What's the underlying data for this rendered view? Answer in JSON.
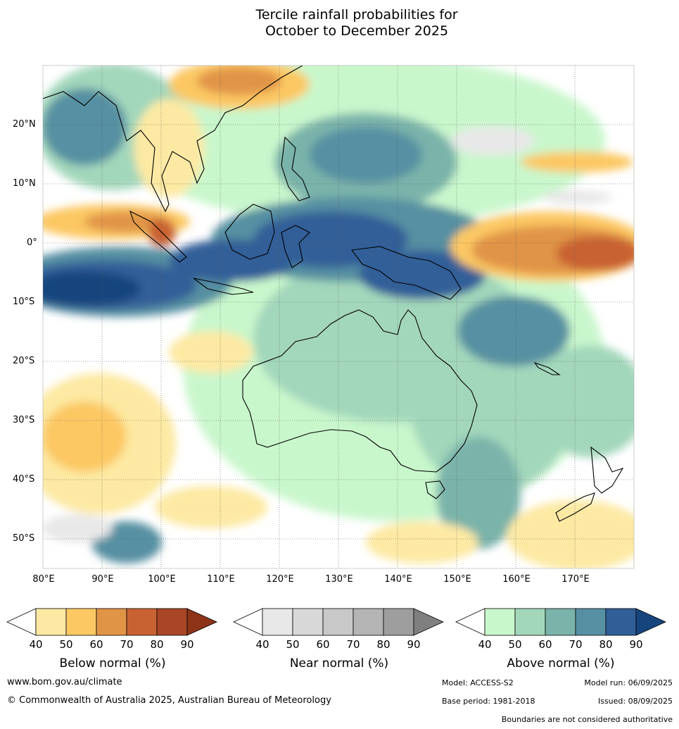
{
  "title": {
    "line1": "Tercile rainfall probabilities for",
    "line2": "October to December 2025"
  },
  "axes": {
    "lat_labels": [
      "20°N",
      "10°N",
      "0°",
      "10°S",
      "20°S",
      "30°S",
      "40°S",
      "50°S"
    ],
    "lon_labels": [
      "80°E",
      "90°E",
      "100°E",
      "110°E",
      "120°E",
      "130°E",
      "140°E",
      "150°E",
      "160°E",
      "170°E"
    ],
    "lat_range": [
      -55,
      30
    ],
    "lon_range": [
      80,
      180
    ]
  },
  "legends": {
    "below": {
      "title": "Below normal (%)",
      "ticks": [
        "40",
        "50",
        "60",
        "70",
        "80",
        "90"
      ],
      "colors": [
        "#ffffff",
        "#fde9a3",
        "#fcc864",
        "#e09446",
        "#c96233",
        "#a84625",
        "#8c3318"
      ]
    },
    "near": {
      "title": "Near normal (%)",
      "ticks": [
        "40",
        "50",
        "60",
        "70",
        "80",
        "90"
      ],
      "colors": [
        "#ffffff",
        "#e8e8e8",
        "#d8d8d8",
        "#c8c8c8",
        "#b4b4b4",
        "#9e9e9e",
        "#7f7f7f"
      ]
    },
    "above": {
      "title": "Above normal (%)",
      "ticks": [
        "40",
        "50",
        "60",
        "70",
        "80",
        "90"
      ],
      "colors": [
        "#ffffff",
        "#c9f7cc",
        "#a3d7bb",
        "#7ab3aa",
        "#5690a2",
        "#305f98",
        "#16457e"
      ]
    }
  },
  "footer": {
    "website": "www.bom.gov.au/climate",
    "copyright": "© Commonwealth of Australia 2025, Australian Bureau of Meteorology",
    "model": "Model: ACCESS-S2",
    "model_run": "Model run: 06/09/2025",
    "base_period": "Base period: 1981-2018",
    "issued": "Issued: 08/09/2025",
    "disclaimer": "Boundaries are not considered authoritative"
  }
}
